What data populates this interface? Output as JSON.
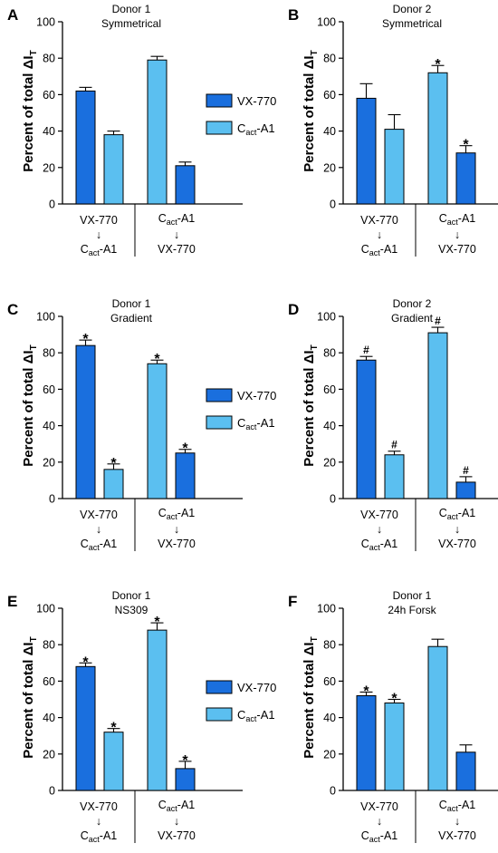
{
  "figure": {
    "y_axis_label": "Percent of total ΔI",
    "y_axis_label_subscript": "T",
    "group_labels": [
      {
        "line1": "VX-770",
        "arrow": "↓",
        "line2_main": "C",
        "line2_sub": "act",
        "line2_tail": "-A1"
      },
      {
        "line1_main": "C",
        "line1_sub": "act",
        "line1_tail": "-A1",
        "arrow": "↓",
        "line2": "VX-770"
      }
    ],
    "legend": [
      {
        "main": "VX-770",
        "sub": "",
        "tail": "",
        "color": "#1a6fde"
      },
      {
        "main": "C",
        "sub": "act",
        "tail": "-A1",
        "color": "#5bbff0"
      }
    ],
    "colors": {
      "dark_bar": "#1a6fde",
      "light_bar": "#5bbff0",
      "axis": "#000000"
    }
  },
  "chart_data": [
    {
      "panel": "A",
      "title_line1": "Donor 1",
      "title_line2": "Symmetrical",
      "type": "bar",
      "ylim": [
        0,
        100
      ],
      "yticks": [
        0,
        20,
        40,
        60,
        80,
        100
      ],
      "legend": true,
      "bars": [
        {
          "color": "dark",
          "value": 62,
          "error": 2,
          "marker": ""
        },
        {
          "color": "light",
          "value": 38,
          "error": 2,
          "marker": ""
        },
        {
          "color": "light",
          "value": 79,
          "error": 2,
          "marker": ""
        },
        {
          "color": "dark",
          "value": 21,
          "error": 2,
          "marker": ""
        }
      ]
    },
    {
      "panel": "B",
      "title_line1": "Donor 2",
      "title_line2": "Symmetrical",
      "type": "bar",
      "ylim": [
        0,
        100
      ],
      "yticks": [
        0,
        20,
        40,
        60,
        80,
        100
      ],
      "legend": false,
      "bars": [
        {
          "color": "dark",
          "value": 58,
          "error": 8,
          "marker": ""
        },
        {
          "color": "light",
          "value": 41,
          "error": 8,
          "marker": ""
        },
        {
          "color": "light",
          "value": 72,
          "error": 4,
          "marker": "*"
        },
        {
          "color": "dark",
          "value": 28,
          "error": 4,
          "marker": "*"
        }
      ]
    },
    {
      "panel": "C",
      "title_line1": "Donor 1",
      "title_line2": "Gradient",
      "type": "bar",
      "ylim": [
        0,
        100
      ],
      "yticks": [
        0,
        20,
        40,
        60,
        80,
        100
      ],
      "legend": true,
      "bars": [
        {
          "color": "dark",
          "value": 84,
          "error": 3,
          "marker": "*"
        },
        {
          "color": "light",
          "value": 16,
          "error": 3,
          "marker": "*"
        },
        {
          "color": "light",
          "value": 74,
          "error": 2,
          "marker": "*"
        },
        {
          "color": "dark",
          "value": 25,
          "error": 2,
          "marker": "*"
        }
      ]
    },
    {
      "panel": "D",
      "title_line1": "Donor 2",
      "title_line2": "Gradient",
      "type": "bar",
      "ylim": [
        0,
        100
      ],
      "yticks": [
        0,
        20,
        40,
        60,
        80,
        100
      ],
      "legend": false,
      "bars": [
        {
          "color": "dark",
          "value": 76,
          "error": 2,
          "marker": "#"
        },
        {
          "color": "light",
          "value": 24,
          "error": 2,
          "marker": "#"
        },
        {
          "color": "light",
          "value": 91,
          "error": 3,
          "marker": "#"
        },
        {
          "color": "dark",
          "value": 9,
          "error": 3,
          "marker": "#"
        }
      ]
    },
    {
      "panel": "E",
      "title_line1": "Donor 1",
      "title_line2": "NS309",
      "type": "bar",
      "ylim": [
        0,
        100
      ],
      "yticks": [
        0,
        20,
        40,
        60,
        80,
        100
      ],
      "legend": true,
      "bars": [
        {
          "color": "dark",
          "value": 68,
          "error": 2,
          "marker": "*"
        },
        {
          "color": "light",
          "value": 32,
          "error": 2,
          "marker": "*"
        },
        {
          "color": "light",
          "value": 88,
          "error": 4,
          "marker": "*"
        },
        {
          "color": "dark",
          "value": 12,
          "error": 4,
          "marker": "*"
        }
      ]
    },
    {
      "panel": "F",
      "title_line1": "Donor 1",
      "title_line2": "24h Forsk",
      "type": "bar",
      "ylim": [
        0,
        100
      ],
      "yticks": [
        0,
        20,
        40,
        60,
        80,
        100
      ],
      "legend": false,
      "bars": [
        {
          "color": "dark",
          "value": 52,
          "error": 2,
          "marker": "*"
        },
        {
          "color": "light",
          "value": 48,
          "error": 2,
          "marker": "*"
        },
        {
          "color": "light",
          "value": 79,
          "error": 4,
          "marker": ""
        },
        {
          "color": "dark",
          "value": 21,
          "error": 4,
          "marker": ""
        }
      ]
    }
  ]
}
